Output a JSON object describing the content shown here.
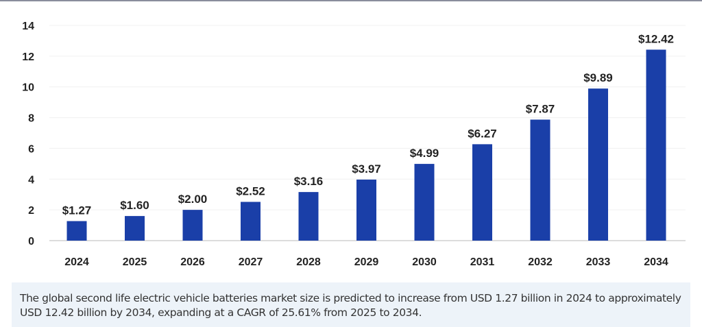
{
  "chart_data": {
    "type": "bar",
    "categories": [
      "2024",
      "2025",
      "2026",
      "2027",
      "2028",
      "2029",
      "2030",
      "2031",
      "2032",
      "2033",
      "2034"
    ],
    "values": [
      1.27,
      1.6,
      2.0,
      2.52,
      3.16,
      3.97,
      4.99,
      6.27,
      7.87,
      9.89,
      12.42
    ],
    "data_labels": [
      "$1.27",
      "$1.60",
      "$2.00",
      "$2.52",
      "$3.16",
      "$3.97",
      "$4.99",
      "$6.27",
      "$7.87",
      "$9.89",
      "$12.42"
    ],
    "yticks": [
      "0",
      "2",
      "4",
      "6",
      "8",
      "10",
      "12",
      "14"
    ],
    "ylim": [
      0,
      14
    ],
    "grid": true,
    "bar_color": "#1a3fa8",
    "xlabel": "",
    "ylabel": ""
  },
  "caption": {
    "text": "The global second life electric vehicle batteries market  size is predicted to increase from USD 1.27 billion in 2024 to approximately USD 12.42 billion by 2034, expanding at a CAGR of 25.61% from 2025 to 2034."
  }
}
